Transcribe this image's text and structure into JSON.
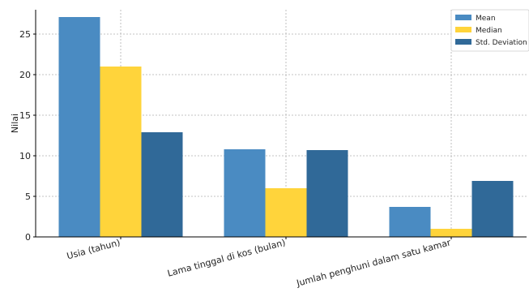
{
  "chart_data": {
    "type": "bar",
    "title": "",
    "xlabel": "",
    "ylabel": "Nilai",
    "ylim": [
      0,
      28
    ],
    "yticks": [
      0,
      5,
      10,
      15,
      20,
      25
    ],
    "grid": true,
    "legend_position": "top-right",
    "categories": [
      "Usia (tahun)",
      "Lama tinggal di kos (bulan)",
      "Jumlah penghuni dalam satu kamar"
    ],
    "series": [
      {
        "name": "Mean",
        "color": "#4a8bc2",
        "values": [
          27.1,
          10.8,
          3.7
        ]
      },
      {
        "name": "Median",
        "color": "#ffd43b",
        "values": [
          21.0,
          6.0,
          1.0
        ]
      },
      {
        "name": "Std. Deviation",
        "color": "#306998",
        "values": [
          12.9,
          10.7,
          6.9
        ]
      }
    ]
  }
}
